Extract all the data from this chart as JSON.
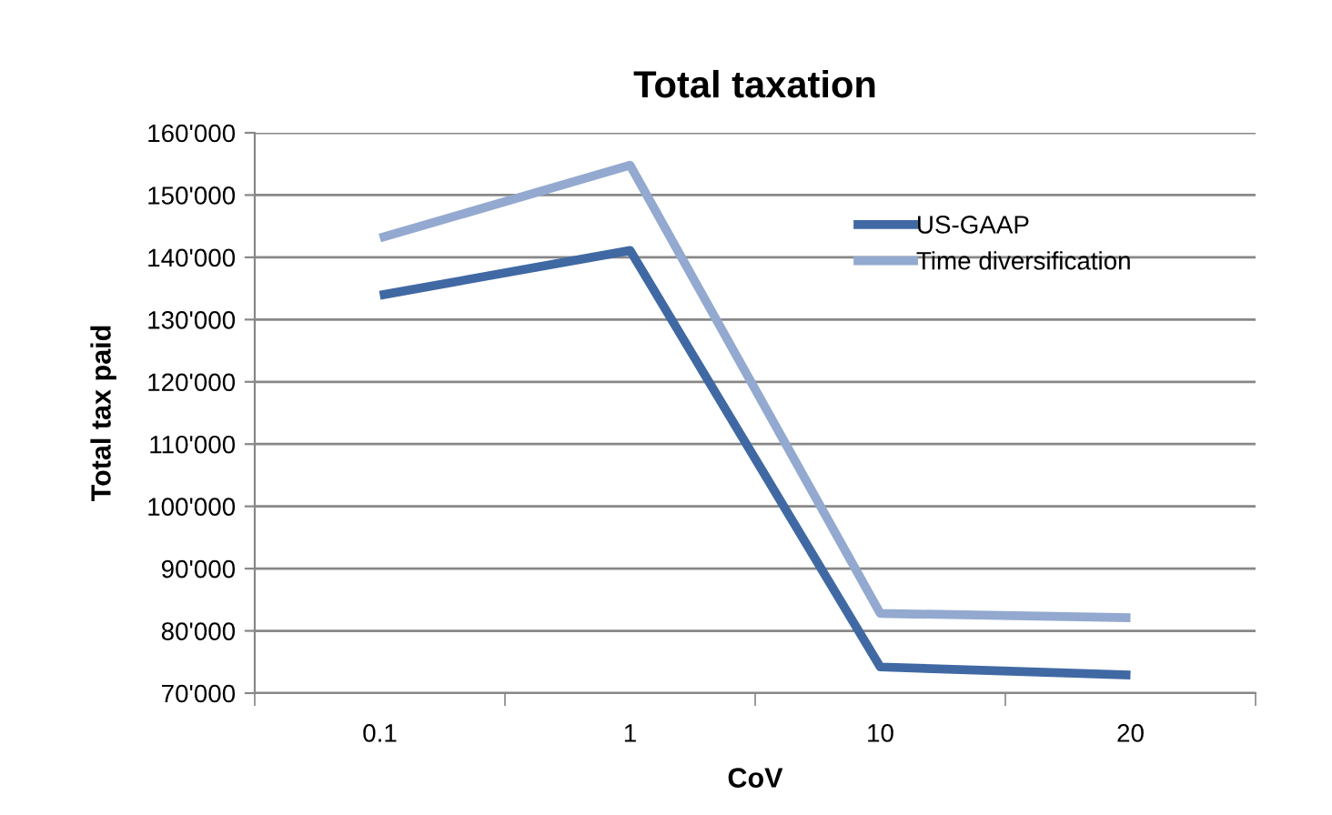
{
  "chart_data": {
    "type": "line",
    "title": "Total taxation",
    "xlabel": "CoV",
    "ylabel": "Total tax paid",
    "categories": [
      "0.1",
      "1",
      "10",
      "20"
    ],
    "series": [
      {
        "name": "US-GAAP",
        "color": "#4069a4",
        "values": [
          133900,
          141100,
          74200,
          72900
        ]
      },
      {
        "name": "Time diversification",
        "color": "#93a9cf",
        "values": [
          143100,
          154800,
          82800,
          82100
        ]
      }
    ],
    "ylim": [
      70000,
      160000
    ],
    "yticks": [
      {
        "value": 70000,
        "label": "70'000"
      },
      {
        "value": 80000,
        "label": "80'000"
      },
      {
        "value": 90000,
        "label": "90'000"
      },
      {
        "value": 100000,
        "label": "100'000"
      },
      {
        "value": 110000,
        "label": "110'000"
      },
      {
        "value": 120000,
        "label": "120'000"
      },
      {
        "value": 130000,
        "label": "130'000"
      },
      {
        "value": 140000,
        "label": "140'000"
      },
      {
        "value": 150000,
        "label": "150'000"
      },
      {
        "value": 160000,
        "label": "160'000"
      }
    ],
    "grid": "y",
    "legend": "right",
    "marker": "none",
    "line_style": "solid"
  }
}
